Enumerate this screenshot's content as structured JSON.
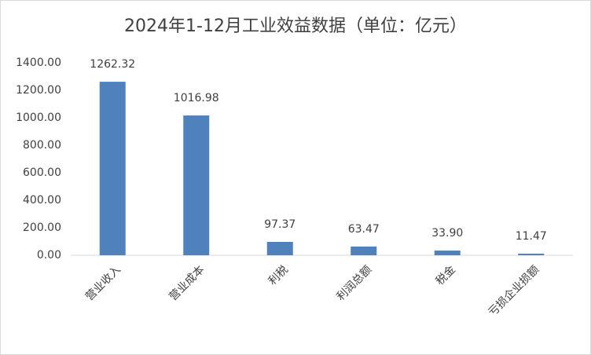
{
  "chart_data": {
    "type": "bar",
    "title": "2024年1-12月工业效益数据（单位：亿元）",
    "categories": [
      "营业收入",
      "营业成本",
      "利税",
      "利润总额",
      "税金",
      "亏损企业损额"
    ],
    "values": [
      1262.32,
      1016.98,
      97.37,
      63.47,
      33.9,
      11.47
    ],
    "value_labels": [
      "1262.32",
      "1016.98",
      "97.37",
      "63.47",
      "33.90",
      "11.47"
    ],
    "color": "#4f81bd",
    "ylim": [
      0,
      1400
    ],
    "yticks": [
      {
        "value": 0,
        "label": "0.00"
      },
      {
        "value": 200,
        "label": "200.00"
      },
      {
        "value": 400,
        "label": "400.00"
      },
      {
        "value": 600,
        "label": "600.00"
      },
      {
        "value": 800,
        "label": "800.00"
      },
      {
        "value": 1000,
        "label": "1000.00"
      },
      {
        "value": 1200,
        "label": "1200.00"
      },
      {
        "value": 1400,
        "label": "1400.00"
      }
    ],
    "grid": false
  }
}
